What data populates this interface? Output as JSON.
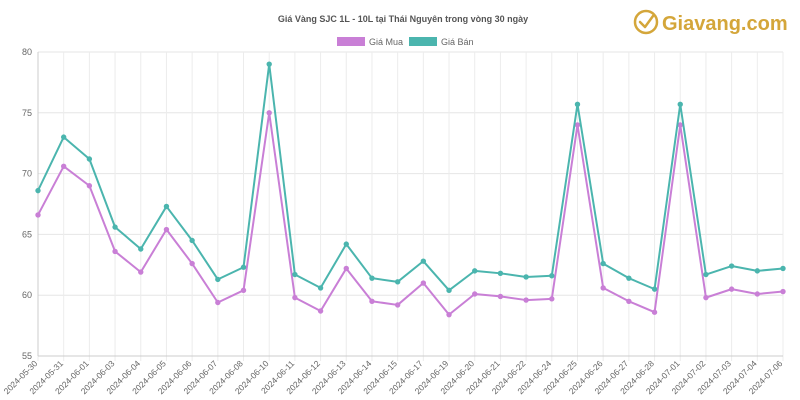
{
  "brand": {
    "name": "Giavang.com",
    "color": "#d4a63a"
  },
  "chart_data": {
    "type": "line",
    "title": "Giá Vàng SJC 1L - 10L tại Thái Nguyên trong vòng 30 ngày",
    "xlabel": "",
    "ylabel": "",
    "ylim": [
      55,
      80
    ],
    "yticks": [
      55,
      60,
      65,
      70,
      75,
      80
    ],
    "grid": true,
    "legend_position": "top-center",
    "categories": [
      "2024-05-30",
      "2024-05-31",
      "2024-06-01",
      "2024-06-03",
      "2024-06-04",
      "2024-06-05",
      "2024-06-06",
      "2024-06-07",
      "2024-06-08",
      "2024-06-10",
      "2024-06-11",
      "2024-06-12",
      "2024-06-13",
      "2024-06-14",
      "2024-06-15",
      "2024-06-17",
      "2024-06-19",
      "2024-06-20",
      "2024-06-21",
      "2024-06-22",
      "2024-06-24",
      "2024-06-25",
      "2024-06-26",
      "2024-06-27",
      "2024-06-28",
      "2024-07-01",
      "2024-07-02",
      "2024-07-03",
      "2024-07-04",
      "2024-07-06"
    ],
    "series": [
      {
        "name": "Giá Mua",
        "color": "#c97fd6",
        "values": [
          66.6,
          70.6,
          69.0,
          63.6,
          61.9,
          65.4,
          62.6,
          59.4,
          60.4,
          75.0,
          59.8,
          58.7,
          62.2,
          59.5,
          59.2,
          61.0,
          58.4,
          60.1,
          59.9,
          59.6,
          59.7,
          74.0,
          60.6,
          59.5,
          58.6,
          74.0,
          59.8,
          60.5,
          60.1,
          60.3
        ]
      },
      {
        "name": "Giá Bán",
        "color": "#4bb5ae",
        "values": [
          68.6,
          73.0,
          71.2,
          65.6,
          63.8,
          67.3,
          64.5,
          61.3,
          62.3,
          79.0,
          61.7,
          60.6,
          64.2,
          61.4,
          61.1,
          62.8,
          60.4,
          62.0,
          61.8,
          61.5,
          61.6,
          75.7,
          62.6,
          61.4,
          60.5,
          75.7,
          61.7,
          62.4,
          62.0,
          62.2
        ]
      }
    ]
  }
}
